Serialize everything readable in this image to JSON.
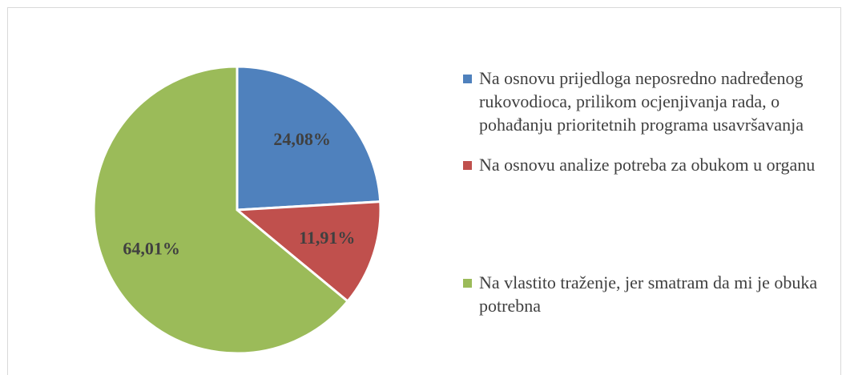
{
  "chart_data": {
    "type": "pie",
    "categories": [
      "Na osnovu prijedloga neposredno nadređenog rukovodioca, prilikom ocjenjivanja rada, o pohađanju prioritetnih programa usavršavanja",
      "Na osnovu analize potreba za obukom u organu",
      "Na vlastito traženje, jer smatram da mi je obuka potrebna"
    ],
    "values": [
      24.08,
      11.91,
      64.01
    ],
    "value_labels": [
      "24,08%",
      "11,91%",
      "64,01%"
    ],
    "colors": [
      "#4f81bd",
      "#c0504d",
      "#9bbb59"
    ],
    "legend": "right"
  }
}
